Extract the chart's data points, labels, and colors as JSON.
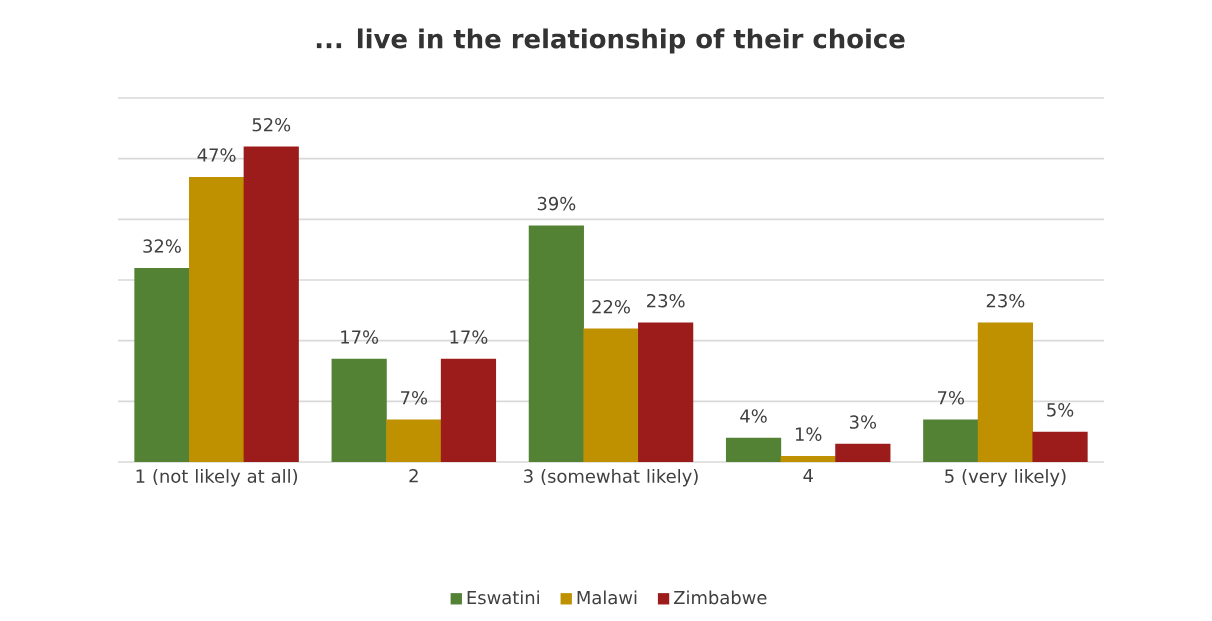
{
  "chart_data": {
    "type": "bar",
    "title": "... live in the relationship of their choice",
    "categories": [
      "1 (not likely at all)",
      "2",
      "3 (somewhat likely)",
      "4",
      "5 (very likely)"
    ],
    "series": [
      {
        "name": "Eswatini",
        "color": "#548235",
        "values": [
          32,
          17,
          39,
          4,
          7
        ],
        "value_labels": [
          "32%",
          "17%",
          "39%",
          "4%",
          "7%"
        ]
      },
      {
        "name": "Malawi",
        "color": "#bf9000",
        "values": [
          47,
          7,
          22,
          1,
          23
        ],
        "value_labels": [
          "47%",
          "7%",
          "22%",
          "1%",
          "23%"
        ]
      },
      {
        "name": "Zimbabwe",
        "color": "#9c1c1c",
        "values": [
          52,
          17,
          23,
          3,
          5
        ],
        "value_labels": [
          "52%",
          "17%",
          "23%",
          "3%",
          "5%"
        ]
      }
    ],
    "ylim": [
      0,
      60
    ],
    "yticks": [
      {
        "value": 0,
        "label": null
      },
      {
        "value": 10,
        "label": null
      },
      {
        "value": 20,
        "label": null
      },
      {
        "value": 30,
        "label": null
      },
      {
        "value": 40,
        "label": null
      },
      {
        "value": 50,
        "label": null
      },
      {
        "value": 60,
        "label": null
      }
    ],
    "grid": "y",
    "legend": "bottom",
    "tick_labels": "x"
  }
}
